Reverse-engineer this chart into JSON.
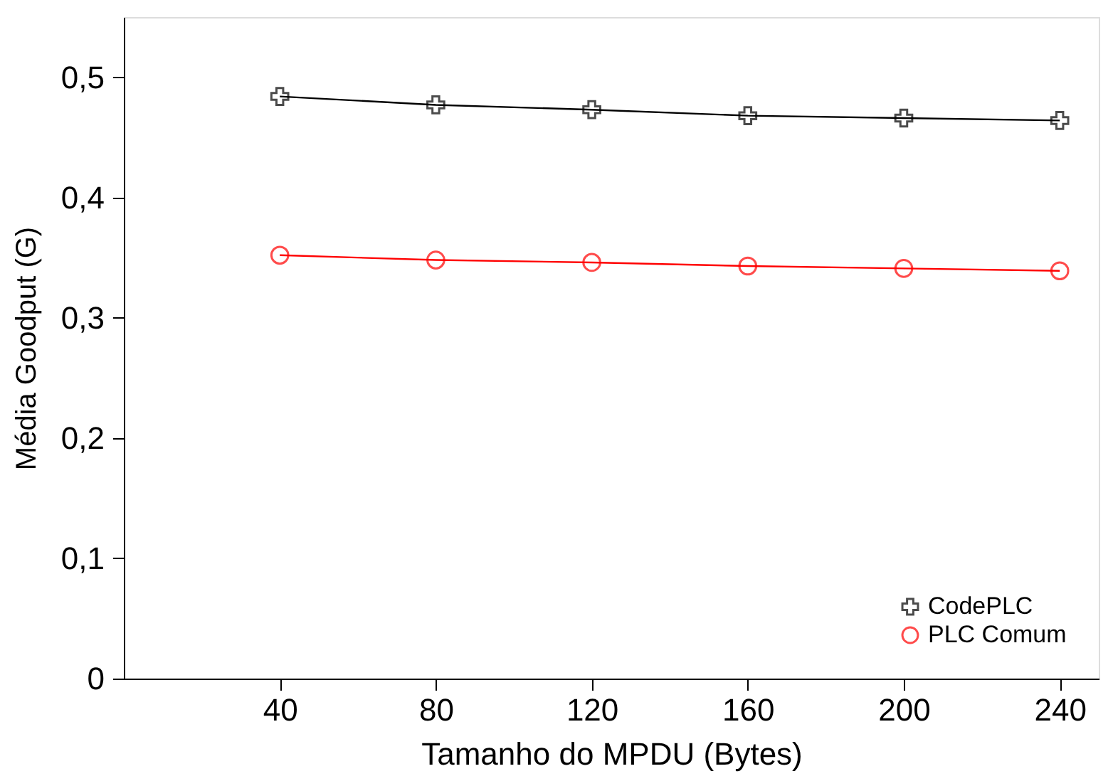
{
  "chart_data": {
    "type": "line",
    "xlabel": "Tamanho do MPDU (Bytes)",
    "ylabel": "Média Goodput (G)",
    "x": [
      40,
      80,
      120,
      160,
      200,
      240
    ],
    "series": [
      {
        "name": "CodePLC",
        "color": "#000000",
        "marker": "cross",
        "values": [
          0.484,
          0.477,
          0.473,
          0.468,
          0.466,
          0.464
        ]
      },
      {
        "name": "PLC Comum",
        "color": "#ff0000",
        "marker": "circle",
        "values": [
          0.352,
          0.348,
          0.346,
          0.343,
          0.341,
          0.339
        ]
      }
    ],
    "xlim": [
      0,
      250
    ],
    "xticks": [
      40,
      80,
      120,
      160,
      200,
      240
    ],
    "ylim": [
      0,
      0.55
    ],
    "yticks": [
      {
        "value": 0,
        "label": "0"
      },
      {
        "value": 0.1,
        "label": "0,1"
      },
      {
        "value": 0.2,
        "label": "0,2"
      },
      {
        "value": 0.3,
        "label": "0,3"
      },
      {
        "value": 0.4,
        "label": "0,4"
      },
      {
        "value": 0.5,
        "label": "0,5"
      }
    ],
    "grid": false,
    "legend": "bottom right",
    "line_style": "solid"
  }
}
